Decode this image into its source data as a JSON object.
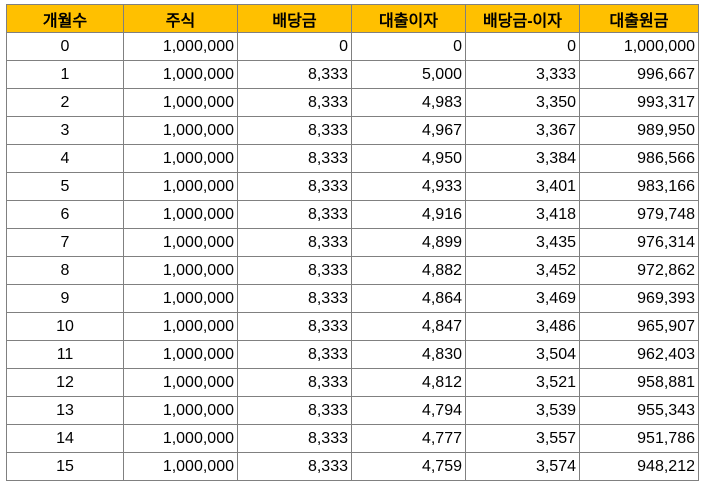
{
  "table": {
    "headers": [
      "개월수",
      "주식",
      "배당금",
      "대출이자",
      "배당금-이자",
      "대출원금"
    ],
    "rows": [
      [
        "0",
        "1,000,000",
        "0",
        "0",
        "0",
        "1,000,000"
      ],
      [
        "1",
        "1,000,000",
        "8,333",
        "5,000",
        "3,333",
        "996,667"
      ],
      [
        "2",
        "1,000,000",
        "8,333",
        "4,983",
        "3,350",
        "993,317"
      ],
      [
        "3",
        "1,000,000",
        "8,333",
        "4,967",
        "3,367",
        "989,950"
      ],
      [
        "4",
        "1,000,000",
        "8,333",
        "4,950",
        "3,384",
        "986,566"
      ],
      [
        "5",
        "1,000,000",
        "8,333",
        "4,933",
        "3,401",
        "983,166"
      ],
      [
        "6",
        "1,000,000",
        "8,333",
        "4,916",
        "3,418",
        "979,748"
      ],
      [
        "7",
        "1,000,000",
        "8,333",
        "4,899",
        "3,435",
        "976,314"
      ],
      [
        "8",
        "1,000,000",
        "8,333",
        "4,882",
        "3,452",
        "972,862"
      ],
      [
        "9",
        "1,000,000",
        "8,333",
        "4,864",
        "3,469",
        "969,393"
      ],
      [
        "10",
        "1,000,000",
        "8,333",
        "4,847",
        "3,486",
        "965,907"
      ],
      [
        "11",
        "1,000,000",
        "8,333",
        "4,830",
        "3,504",
        "962,403"
      ],
      [
        "12",
        "1,000,000",
        "8,333",
        "4,812",
        "3,521",
        "958,881"
      ],
      [
        "13",
        "1,000,000",
        "8,333",
        "4,794",
        "3,539",
        "955,343"
      ],
      [
        "14",
        "1,000,000",
        "8,333",
        "4,777",
        "3,557",
        "951,786"
      ],
      [
        "15",
        "1,000,000",
        "8,333",
        "4,759",
        "3,574",
        "948,212"
      ]
    ]
  },
  "colors": {
    "header_fill": "#ffc000",
    "grid_line": "#808080"
  }
}
